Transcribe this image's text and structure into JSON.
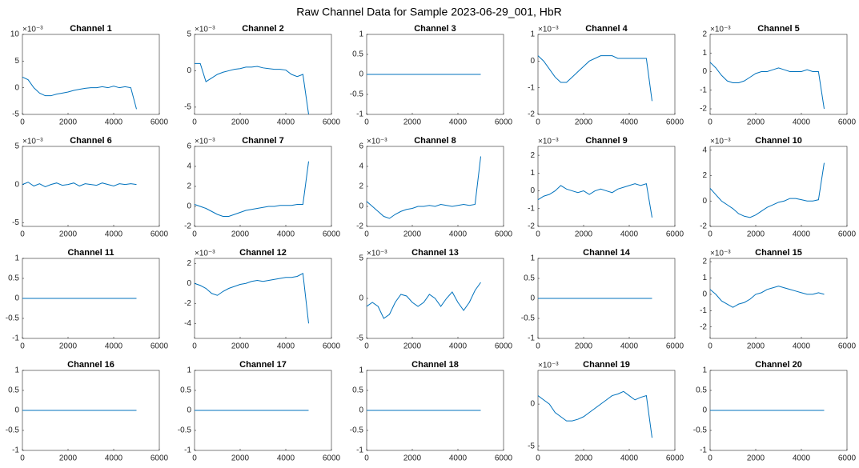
{
  "title": "Raw Channel Data for Sample 2023-06-29_001, HbR",
  "chart_data": [
    {
      "type": "line",
      "title": "Channel 1",
      "exponent_label": "×10⁻³",
      "color": "#0072bd",
      "xlim": [
        0,
        6000
      ],
      "xticks": [
        0,
        2000,
        4000,
        6000
      ],
      "ylim": [
        -5,
        10
      ],
      "yticks": [
        -5,
        0,
        5,
        10
      ],
      "x": [
        0,
        250,
        500,
        750,
        1000,
        1250,
        1500,
        1750,
        2000,
        2250,
        2500,
        2750,
        3000,
        3250,
        3500,
        3750,
        4000,
        4250,
        4500,
        4750,
        5000
      ],
      "values": [
        2,
        1.5,
        0,
        -1,
        -1.5,
        -1.5,
        -1.2,
        -1,
        -0.8,
        -0.5,
        -0.3,
        -0.1,
        0,
        0,
        0.2,
        0,
        0.3,
        0,
        0.2,
        0,
        -4
      ]
    },
    {
      "type": "line",
      "title": "Channel 2",
      "exponent_label": "×10⁻³",
      "color": "#0072bd",
      "xlim": [
        0,
        6000
      ],
      "xticks": [
        0,
        2000,
        4000,
        6000
      ],
      "ylim": [
        -6,
        5
      ],
      "yticks": [
        -5,
        0,
        5
      ],
      "x": [
        0,
        250,
        500,
        750,
        1000,
        1250,
        1500,
        1750,
        2000,
        2250,
        2500,
        2750,
        3000,
        3250,
        3500,
        3750,
        4000,
        4250,
        4500,
        4750,
        5000
      ],
      "values": [
        1,
        1,
        -1.5,
        -1,
        -0.5,
        -0.2,
        0,
        0.2,
        0.3,
        0.5,
        0.5,
        0.6,
        0.4,
        0.3,
        0.2,
        0.2,
        0.1,
        -0.5,
        -0.8,
        -0.5,
        -6
      ]
    },
    {
      "type": "line",
      "title": "Channel 3",
      "color": "#0072bd",
      "xlim": [
        0,
        6000
      ],
      "xticks": [
        0,
        2000,
        4000,
        6000
      ],
      "ylim": [
        -1,
        1
      ],
      "yticks": [
        -1,
        -0.5,
        0,
        0.5,
        1
      ],
      "x": [
        0,
        5000
      ],
      "values": [
        0,
        0
      ]
    },
    {
      "type": "line",
      "title": "Channel 4",
      "exponent_label": "×10⁻³",
      "color": "#0072bd",
      "xlim": [
        0,
        6000
      ],
      "xticks": [
        0,
        2000,
        4000,
        6000
      ],
      "ylim": [
        -2,
        1
      ],
      "yticks": [
        -2,
        -1,
        0,
        1
      ],
      "x": [
        0,
        250,
        500,
        750,
        1000,
        1250,
        1500,
        1750,
        2000,
        2250,
        2500,
        2750,
        3000,
        3250,
        3500,
        3750,
        4000,
        4250,
        4500,
        4750,
        5000
      ],
      "values": [
        0.2,
        0,
        -0.3,
        -0.6,
        -0.8,
        -0.8,
        -0.6,
        -0.4,
        -0.2,
        0,
        0.1,
        0.2,
        0.2,
        0.2,
        0.1,
        0.1,
        0.1,
        0.1,
        0.1,
        0.1,
        -1.5
      ]
    },
    {
      "type": "line",
      "title": "Channel 5",
      "exponent_label": "×10⁻³",
      "color": "#0072bd",
      "xlim": [
        0,
        6000
      ],
      "xticks": [
        0,
        2000,
        4000,
        6000
      ],
      "ylim": [
        -2.3,
        2
      ],
      "yticks": [
        -2,
        -1,
        0,
        1,
        2
      ],
      "x": [
        0,
        250,
        500,
        750,
        1000,
        1250,
        1500,
        1750,
        2000,
        2250,
        2500,
        2750,
        3000,
        3250,
        3500,
        3750,
        4000,
        4250,
        4500,
        4750,
        5000
      ],
      "values": [
        0.5,
        0.2,
        -0.2,
        -0.5,
        -0.6,
        -0.6,
        -0.5,
        -0.3,
        -0.1,
        0,
        0,
        0.1,
        0.2,
        0.1,
        0,
        0,
        0,
        0.1,
        0,
        0,
        -2
      ]
    },
    {
      "type": "line",
      "title": "Channel 6",
      "exponent_label": "×10⁻³",
      "color": "#0072bd",
      "xlim": [
        0,
        6000
      ],
      "xticks": [
        0,
        2000,
        4000,
        6000
      ],
      "ylim": [
        -5.5,
        5
      ],
      "yticks": [
        -5,
        0,
        5
      ],
      "x": [
        0,
        250,
        500,
        750,
        1000,
        1250,
        1500,
        1750,
        2000,
        2250,
        2500,
        2750,
        3000,
        3250,
        3500,
        3750,
        4000,
        4250,
        4500,
        4750,
        5000
      ],
      "values": [
        0,
        0.3,
        -0.2,
        0.1,
        -0.3,
        0,
        0.2,
        -0.1,
        0,
        0.2,
        -0.2,
        0.1,
        0,
        -0.1,
        0.2,
        0,
        -0.2,
        0.1,
        0,
        0.1,
        0
      ]
    },
    {
      "type": "line",
      "title": "Channel 7",
      "exponent_label": "×10⁻³",
      "color": "#0072bd",
      "xlim": [
        0,
        6000
      ],
      "xticks": [
        0,
        2000,
        4000,
        6000
      ],
      "ylim": [
        -2,
        6
      ],
      "yticks": [
        -2,
        0,
        2,
        4,
        6
      ],
      "x": [
        0,
        250,
        500,
        750,
        1000,
        1250,
        1500,
        1750,
        2000,
        2250,
        2500,
        2750,
        3000,
        3250,
        3500,
        3750,
        4000,
        4250,
        4500,
        4750,
        5000
      ],
      "values": [
        0.2,
        0,
        -0.2,
        -0.5,
        -0.8,
        -1,
        -1,
        -0.8,
        -0.6,
        -0.4,
        -0.3,
        -0.2,
        -0.1,
        0,
        0,
        0.1,
        0.1,
        0.1,
        0.2,
        0.2,
        4.5
      ]
    },
    {
      "type": "line",
      "title": "Channel 8",
      "exponent_label": "×10⁻³",
      "color": "#0072bd",
      "xlim": [
        0,
        6000
      ],
      "xticks": [
        0,
        2000,
        4000,
        6000
      ],
      "ylim": [
        -2,
        6
      ],
      "yticks": [
        -2,
        0,
        2,
        4,
        6
      ],
      "x": [
        0,
        250,
        500,
        750,
        1000,
        1250,
        1500,
        1750,
        2000,
        2250,
        2500,
        2750,
        3000,
        3250,
        3500,
        3750,
        4000,
        4250,
        4500,
        4750,
        5000
      ],
      "values": [
        0.5,
        0,
        -0.5,
        -1,
        -1.2,
        -0.8,
        -0.5,
        -0.3,
        -0.2,
        0,
        0,
        0.1,
        0,
        0.2,
        0.1,
        0,
        0.1,
        0.2,
        0.1,
        0.2,
        5
      ]
    },
    {
      "type": "line",
      "title": "Channel 9",
      "exponent_label": "×10⁻³",
      "color": "#0072bd",
      "xlim": [
        0,
        6000
      ],
      "xticks": [
        0,
        2000,
        4000,
        6000
      ],
      "ylim": [
        -2,
        2.5
      ],
      "yticks": [
        -2,
        -1,
        0,
        1,
        2
      ],
      "x": [
        0,
        250,
        500,
        750,
        1000,
        1250,
        1500,
        1750,
        2000,
        2250,
        2500,
        2750,
        3000,
        3250,
        3500,
        3750,
        4000,
        4250,
        4500,
        4750,
        5000
      ],
      "values": [
        -0.5,
        -0.3,
        -0.2,
        0,
        0.3,
        0.1,
        0,
        -0.1,
        0,
        -0.2,
        0,
        0.1,
        0,
        -0.1,
        0.1,
        0.2,
        0.3,
        0.4,
        0.3,
        0.4,
        -1.5
      ]
    },
    {
      "type": "line",
      "title": "Channel 10",
      "exponent_label": "×10⁻³",
      "color": "#0072bd",
      "xlim": [
        0,
        6000
      ],
      "xticks": [
        0,
        2000,
        4000,
        6000
      ],
      "ylim": [
        -2,
        4.3
      ],
      "yticks": [
        -2,
        0,
        2,
        4
      ],
      "x": [
        0,
        250,
        500,
        750,
        1000,
        1250,
        1500,
        1750,
        2000,
        2250,
        2500,
        2750,
        3000,
        3250,
        3500,
        3750,
        4000,
        4250,
        4500,
        4750,
        5000
      ],
      "values": [
        1,
        0.5,
        0,
        -0.3,
        -0.6,
        -1,
        -1.2,
        -1.3,
        -1.1,
        -0.8,
        -0.5,
        -0.3,
        -0.1,
        0,
        0.2,
        0.2,
        0.1,
        0,
        0,
        0.1,
        3
      ]
    },
    {
      "type": "line",
      "title": "Channel 11",
      "color": "#0072bd",
      "xlim": [
        0,
        6000
      ],
      "xticks": [
        0,
        2000,
        4000,
        6000
      ],
      "ylim": [
        -1,
        1
      ],
      "yticks": [
        -1,
        -0.5,
        0,
        0.5,
        1
      ],
      "x": [
        0,
        5000
      ],
      "values": [
        0,
        0
      ]
    },
    {
      "type": "line",
      "title": "Channel 12",
      "exponent_label": "×10⁻³",
      "color": "#0072bd",
      "xlim": [
        0,
        6000
      ],
      "xticks": [
        0,
        2000,
        4000,
        6000
      ],
      "ylim": [
        -5.5,
        2.5
      ],
      "yticks": [
        -4,
        -2,
        0,
        2
      ],
      "x": [
        0,
        250,
        500,
        750,
        1000,
        1250,
        1500,
        1750,
        2000,
        2250,
        2500,
        2750,
        3000,
        3250,
        3500,
        3750,
        4000,
        4250,
        4500,
        4750,
        5000
      ],
      "values": [
        0,
        -0.2,
        -0.5,
        -1,
        -1.2,
        -0.8,
        -0.5,
        -0.3,
        -0.1,
        0,
        0.2,
        0.3,
        0.2,
        0.3,
        0.4,
        0.5,
        0.6,
        0.6,
        0.7,
        1,
        -4
      ]
    },
    {
      "type": "line",
      "title": "Channel 13",
      "exponent_label": "×10⁻³",
      "color": "#0072bd",
      "xlim": [
        0,
        6000
      ],
      "xticks": [
        0,
        2000,
        4000,
        6000
      ],
      "ylim": [
        -5,
        5
      ],
      "yticks": [
        -5,
        0,
        5
      ],
      "x": [
        0,
        250,
        500,
        750,
        1000,
        1250,
        1500,
        1750,
        2000,
        2250,
        2500,
        2750,
        3000,
        3250,
        3500,
        3750,
        4000,
        4250,
        4500,
        4750,
        5000
      ],
      "values": [
        -1,
        -0.5,
        -1,
        -2.5,
        -2,
        -0.5,
        0.5,
        0.3,
        -0.5,
        -1,
        -0.5,
        0.5,
        0,
        -1,
        0,
        0.8,
        -0.5,
        -1.5,
        -0.5,
        1,
        2
      ]
    },
    {
      "type": "line",
      "title": "Channel 14",
      "color": "#0072bd",
      "xlim": [
        0,
        6000
      ],
      "xticks": [
        0,
        2000,
        4000,
        6000
      ],
      "ylim": [
        -1,
        1
      ],
      "yticks": [
        -1,
        -0.5,
        0,
        0.5,
        1
      ],
      "x": [
        0,
        5000
      ],
      "values": [
        0,
        0
      ]
    },
    {
      "type": "line",
      "title": "Channel 15",
      "exponent_label": "×10⁻³",
      "color": "#0072bd",
      "xlim": [
        0,
        6000
      ],
      "xticks": [
        0,
        2000,
        4000,
        6000
      ],
      "ylim": [
        -2.7,
        2.2
      ],
      "yticks": [
        -2,
        -1,
        0,
        1,
        2
      ],
      "x": [
        0,
        250,
        500,
        750,
        1000,
        1250,
        1500,
        1750,
        2000,
        2250,
        2500,
        2750,
        3000,
        3250,
        3500,
        3750,
        4000,
        4250,
        4500,
        4750,
        5000
      ],
      "values": [
        0.3,
        0,
        -0.4,
        -0.6,
        -0.8,
        -0.6,
        -0.5,
        -0.3,
        0,
        0.1,
        0.3,
        0.4,
        0.5,
        0.4,
        0.3,
        0.2,
        0.1,
        0,
        0,
        0.1,
        0
      ]
    },
    {
      "type": "line",
      "title": "Channel 16",
      "color": "#0072bd",
      "xlim": [
        0,
        6000
      ],
      "xticks": [
        0,
        2000,
        4000,
        6000
      ],
      "ylim": [
        -1,
        1
      ],
      "yticks": [
        -1,
        -0.5,
        0,
        0.5,
        1
      ],
      "x": [
        0,
        5000
      ],
      "values": [
        0,
        0
      ]
    },
    {
      "type": "line",
      "title": "Channel 17",
      "color": "#0072bd",
      "xlim": [
        0,
        6000
      ],
      "xticks": [
        0,
        2000,
        4000,
        6000
      ],
      "ylim": [
        -1,
        1
      ],
      "yticks": [
        -1,
        -0.5,
        0,
        0.5,
        1
      ],
      "x": [
        0,
        5000
      ],
      "values": [
        0,
        0
      ]
    },
    {
      "type": "line",
      "title": "Channel 18",
      "color": "#0072bd",
      "xlim": [
        0,
        6000
      ],
      "xticks": [
        0,
        2000,
        4000,
        6000
      ],
      "ylim": [
        -1,
        1
      ],
      "yticks": [
        -1,
        -0.5,
        0,
        0.5,
        1
      ],
      "x": [
        0,
        5000
      ],
      "values": [
        0,
        0
      ]
    },
    {
      "type": "line",
      "title": "Channel 19",
      "exponent_label": "×10⁻³",
      "color": "#0072bd",
      "xlim": [
        0,
        6000
      ],
      "xticks": [
        0,
        2000,
        4000,
        6000
      ],
      "ylim": [
        -5.5,
        4
      ],
      "yticks": [
        -5,
        0
      ],
      "x": [
        0,
        250,
        500,
        750,
        1000,
        1250,
        1500,
        1750,
        2000,
        2250,
        2500,
        2750,
        3000,
        3250,
        3500,
        3750,
        4000,
        4250,
        4500,
        4750,
        5000
      ],
      "values": [
        1,
        0.5,
        0,
        -1,
        -1.5,
        -2,
        -2,
        -1.8,
        -1.5,
        -1,
        -0.5,
        0,
        0.5,
        1,
        1.2,
        1.5,
        1,
        0.5,
        0.8,
        1,
        -4
      ]
    },
    {
      "type": "line",
      "title": "Channel 20",
      "color": "#0072bd",
      "xlim": [
        0,
        6000
      ],
      "xticks": [
        0,
        2000,
        4000,
        6000
      ],
      "ylim": [
        -1,
        1
      ],
      "yticks": [
        -1,
        -0.5,
        0,
        0.5,
        1
      ],
      "x": [
        0,
        5000
      ],
      "values": [
        0,
        0
      ]
    }
  ]
}
